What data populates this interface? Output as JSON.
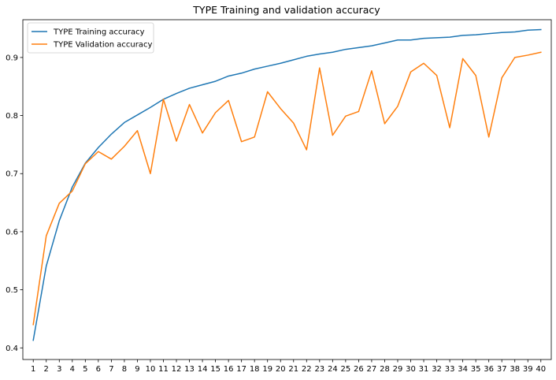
{
  "chart_data": {
    "type": "line",
    "title": "TYPE Training and validation accuracy",
    "xlabel": "",
    "ylabel": "",
    "x": [
      1,
      2,
      3,
      4,
      5,
      6,
      7,
      8,
      9,
      10,
      11,
      12,
      13,
      14,
      15,
      16,
      17,
      18,
      19,
      20,
      21,
      22,
      23,
      24,
      25,
      26,
      27,
      28,
      29,
      30,
      31,
      32,
      33,
      34,
      35,
      36,
      37,
      38,
      39,
      40
    ],
    "xlim": [
      0.2,
      40.8
    ],
    "ylim": [
      0.38,
      0.965
    ],
    "yticks": [
      0.4,
      0.5,
      0.6,
      0.7,
      0.8,
      0.9
    ],
    "ytick_labels": [
      "0.4",
      "0.5",
      "0.6",
      "0.7",
      "0.8",
      "0.9"
    ],
    "grid": false,
    "legend_position": "top-left",
    "series": [
      {
        "name": "TYPE Training accuracy",
        "color": "#1f77b4",
        "values": [
          0.413,
          0.541,
          0.619,
          0.677,
          0.718,
          0.745,
          0.768,
          0.788,
          0.801,
          0.814,
          0.828,
          0.838,
          0.847,
          0.853,
          0.859,
          0.868,
          0.873,
          0.88,
          0.885,
          0.89,
          0.896,
          0.902,
          0.906,
          0.909,
          0.914,
          0.917,
          0.92,
          0.925,
          0.93,
          0.93,
          0.933,
          0.934,
          0.935,
          0.938,
          0.939,
          0.941,
          0.943,
          0.944,
          0.947,
          0.948
        ]
      },
      {
        "name": "TYPE Validation accuracy",
        "color": "#ff7f0e",
        "values": [
          0.44,
          0.593,
          0.649,
          0.67,
          0.717,
          0.738,
          0.725,
          0.747,
          0.774,
          0.7,
          0.828,
          0.756,
          0.819,
          0.77,
          0.805,
          0.826,
          0.755,
          0.763,
          0.841,
          0.812,
          0.787,
          0.741,
          0.882,
          0.766,
          0.799,
          0.807,
          0.877,
          0.786,
          0.816,
          0.875,
          0.89,
          0.869,
          0.779,
          0.898,
          0.869,
          0.763,
          0.865,
          0.9,
          0.904,
          0.909
        ]
      }
    ]
  }
}
